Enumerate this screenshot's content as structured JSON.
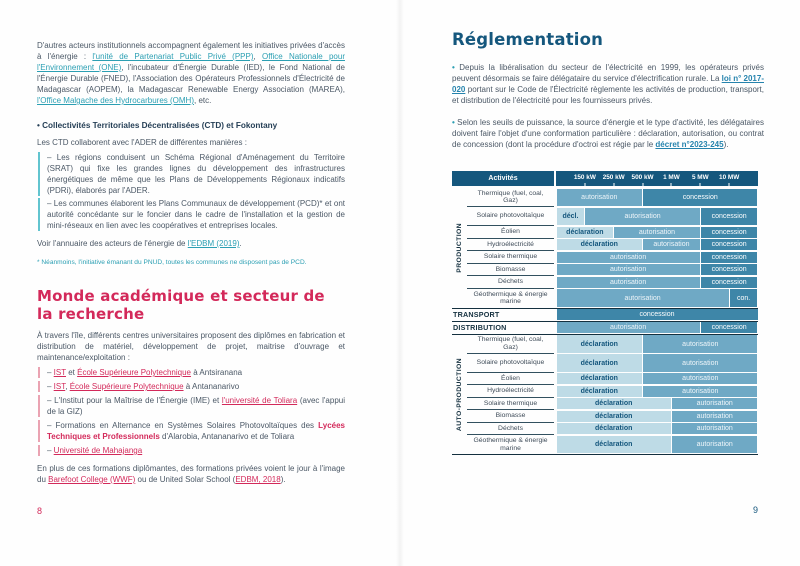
{
  "left_page": {
    "para1_segments": [
      {
        "t": "D'autres acteurs institutionnels accompagnent également les initiatives privées d'accès à l'énergie : ",
        "s": "t"
      },
      {
        "t": "l'unité de Partenariat Public Privé (PPP)",
        "s": "lt"
      },
      {
        "t": ", ",
        "s": "t"
      },
      {
        "t": "Office Nationale pour l'Environnement (ONE)",
        "s": "lt"
      },
      {
        "t": ", l'incubateur d'Énergie Durable (IED), le Fond National de l'Énergie Durable (FNED), l'Association des Opérateurs Professionnels d'Électricité de Madagascar (AOPEM), la Madagascar Renewable Energy Association (MAREA), ",
        "s": "t"
      },
      {
        "t": "l'Office Malgache des Hydrocarbures (OMH)",
        "s": "lt"
      },
      {
        "t": ", etc.",
        "s": "t"
      }
    ],
    "ctd_heading": "• Collectivités Territoriales Décentralisées (CTD) et Fokontany",
    "ctd_intro": "Les CTD collaborent avec l'ADER de différentes manières :",
    "ctd_items": [
      [
        {
          "t": "– Les régions conduisent un  Schéma Régional d'Aménagement du Territoire (SRAT) qui fixe les grandes lignes du développement des infrastructures énergétiques de même que les Plans de Développements Régionaux indicatifs (PDRi), élaborés par l'ADER.",
          "s": "t"
        }
      ],
      [
        {
          "t": "– Les communes élaborent les Plans Communaux de développement (PCD)* et ont autorité concédante sur le foncier dans le cadre de l'installation et la gestion de mini-réseaux en lien avec les coopératives et entreprises locales.",
          "s": "t"
        }
      ]
    ],
    "voir_segments": [
      {
        "t": "Voir l'annuaire des acteurs de l'énergie de ",
        "s": "t"
      },
      {
        "t": "l'EDBM (2019)",
        "s": "lt"
      },
      {
        "t": ".",
        "s": "t"
      }
    ],
    "footnote": "* Néanmoins, l'initiative émanant du PNUD, toutes les communes ne disposent pas de PCD.",
    "academic_heading": "Monde académique et secteur de la recherche",
    "academic_intro": "À travers l'île, différents centres universitaires proposent des diplômes en fabrication et distribution de matériel, développement de projet, maitrise d'ouvrage et maintenance/exploitation :",
    "academic_items": [
      [
        {
          "t": "– ",
          "s": "t"
        },
        {
          "t": "IST",
          "s": "lr"
        },
        {
          "t": " et ",
          "s": "t"
        },
        {
          "t": "École Supérieure Polytechnique",
          "s": "lr"
        },
        {
          "t": " à Antsiranana",
          "s": "t"
        }
      ],
      [
        {
          "t": "– ",
          "s": "t"
        },
        {
          "t": "IST",
          "s": "lr"
        },
        {
          "t": ", ",
          "s": "t"
        },
        {
          "t": "École Supérieure Polytechnique",
          "s": "lr"
        },
        {
          "t": " à Antananarivo",
          "s": "t"
        }
      ],
      [
        {
          "t": "– L'Institut pour la Maîtrise de l'Énergie (IME) et ",
          "s": "t"
        },
        {
          "t": "l'université de Toliara",
          "s": "lr"
        },
        {
          "t": " (avec l'appui de la GIZ)",
          "s": "t"
        }
      ],
      [
        {
          "t": "– Formations en Alternance en Systèmes Solaires Photovoltaïques des ",
          "s": "t"
        },
        {
          "t": "Lycées Techniques et Professionnels",
          "s": "br"
        },
        {
          "t": " d'Alarobia, Antananarivo et de Toliara",
          "s": "t"
        }
      ],
      [
        {
          "t": "– ",
          "s": "t"
        },
        {
          "t": "Université de Mahajanga",
          "s": "lr"
        }
      ]
    ],
    "closing_segments": [
      {
        "t": "En plus de ces formations diplômantes, des formations privées voient le jour à l'image du ",
        "s": "t"
      },
      {
        "t": "Barefoot College (WWF)",
        "s": "lr"
      },
      {
        "t": " ou de United Solar School (",
        "s": "t"
      },
      {
        "t": "EDBM, 2018",
        "s": "lr"
      },
      {
        "t": ").",
        "s": "t"
      }
    ],
    "page_number": "8"
  },
  "right_page": {
    "heading": "Réglementation",
    "para1_segments": [
      {
        "t": "• ",
        "s": "bt"
      },
      {
        "t": "Depuis la libéralisation du secteur de l'électricité en 1999, les opérateurs privés peuvent désormais se faire délégataire du service d'électrification rurale.  La ",
        "s": "t"
      },
      {
        "t": "loi n° 2017- 020",
        "s": "lb"
      },
      {
        "t": " portant sur le Code de l'Électricité règlemente les activités de production, transport, et distribution de l'électricité pour les fournisseurs privés.",
        "s": "t"
      }
    ],
    "para2_segments": [
      {
        "t": "• ",
        "s": "bt"
      },
      {
        "t": "Selon les seuils de puissance, la source d'énergie et le type d'activité, les délégataires doivent faire l'objet d'une conformation particulière : déclaration, autorisation, ou contrat de concession (dont la procédure d'octroi est régie par le ",
        "s": "t"
      },
      {
        "t": "décret n°2023-245",
        "s": "lb"
      },
      {
        "t": ").",
        "s": "t"
      }
    ],
    "page_number": "9"
  },
  "table": {
    "header": {
      "activities_label": "Activités",
      "thresholds": [
        "150 kW",
        "250 kW",
        "500 kW",
        "1 MW",
        "5 MW",
        "10 MW"
      ]
    },
    "zones": 7,
    "sections": [
      {
        "group": "PRODUCTION",
        "rows": [
          {
            "label": "Thermique (fuel, coal, Gaz)",
            "two": true,
            "cells": [
              {
                "text": "autorisation",
                "type": "auto",
                "from": 0,
                "to": 3
              },
              {
                "text": "concession",
                "type": "conc",
                "from": 3,
                "to": 7
              }
            ]
          },
          {
            "label": "Solaire photovoltaïque",
            "two": true,
            "cells": [
              {
                "text": "décl.",
                "type": "decl",
                "from": 0,
                "to": 1
              },
              {
                "text": "autorisation",
                "type": "auto",
                "from": 1,
                "to": 5
              },
              {
                "text": "concession",
                "type": "conc",
                "from": 5,
                "to": 7
              }
            ]
          },
          {
            "label": "Éolien",
            "cells": [
              {
                "text": "déclaration",
                "type": "decl",
                "from": 0,
                "to": 2
              },
              {
                "text": "autorisation",
                "type": "auto",
                "from": 2,
                "to": 5
              },
              {
                "text": "concession",
                "type": "conc",
                "from": 5,
                "to": 7
              }
            ]
          },
          {
            "label": "Hydroélectricité",
            "cells": [
              {
                "text": "déclaration",
                "type": "decl",
                "from": 0,
                "to": 3
              },
              {
                "text": "autorisation",
                "type": "auto",
                "from": 3,
                "to": 5
              },
              {
                "text": "concession",
                "type": "conc",
                "from": 5,
                "to": 7
              }
            ]
          },
          {
            "label": "Solaire thermique",
            "cells": [
              {
                "text": "autorisation",
                "type": "auto",
                "from": 0,
                "to": 5
              },
              {
                "text": "concession",
                "type": "conc",
                "from": 5,
                "to": 7
              }
            ]
          },
          {
            "label": "Biomasse",
            "cells": [
              {
                "text": "autorisation",
                "type": "auto",
                "from": 0,
                "to": 5
              },
              {
                "text": "concession",
                "type": "conc",
                "from": 5,
                "to": 7
              }
            ]
          },
          {
            "label": "Déchets",
            "cells": [
              {
                "text": "autorisation",
                "type": "auto",
                "from": 0,
                "to": 5
              },
              {
                "text": "concession",
                "type": "conc",
                "from": 5,
                "to": 7
              }
            ]
          },
          {
            "label": "Géothermique & énergie marine",
            "two": true,
            "cells": [
              {
                "text": "autorisation",
                "type": "auto",
                "from": 0,
                "to": 6
              },
              {
                "text": "con.",
                "type": "conc",
                "from": 6,
                "to": 7
              }
            ]
          }
        ]
      },
      {
        "band": "TRANSPORT",
        "cells": [
          {
            "text": "concession",
            "type": "conc",
            "from": 0,
            "to": 7
          }
        ]
      },
      {
        "band": "DISTRIBUTION",
        "cells": [
          {
            "text": "autorisation",
            "type": "auto",
            "from": 0,
            "to": 5
          },
          {
            "text": "concession",
            "type": "conc",
            "from": 5,
            "to": 7
          }
        ]
      },
      {
        "group": "AUTO-PRODUCTION",
        "rows": [
          {
            "label": "Thermique (fuel, coal, Gaz)",
            "two": true,
            "cells": [
              {
                "text": "déclaration",
                "type": "decl",
                "from": 0,
                "to": 3
              },
              {
                "text": "autorisation",
                "type": "auto",
                "from": 3,
                "to": 7
              }
            ]
          },
          {
            "label": "Solaire photovoltaïque",
            "two": true,
            "cells": [
              {
                "text": "déclaration",
                "type": "decl",
                "from": 0,
                "to": 3
              },
              {
                "text": "autorisation",
                "type": "auto",
                "from": 3,
                "to": 7
              }
            ]
          },
          {
            "label": "Éolien",
            "cells": [
              {
                "text": "déclaration",
                "type": "decl",
                "from": 0,
                "to": 3
              },
              {
                "text": "autorisation",
                "type": "auto",
                "from": 3,
                "to": 7
              }
            ]
          },
          {
            "label": "Hydroélectricité",
            "cells": [
              {
                "text": "déclaration",
                "type": "decl",
                "from": 0,
                "to": 3
              },
              {
                "text": "autorisation",
                "type": "auto",
                "from": 3,
                "to": 7
              }
            ]
          },
          {
            "label": "Solaire thermique",
            "cells": [
              {
                "text": "déclaration",
                "type": "decl",
                "from": 0,
                "to": 4
              },
              {
                "text": "autorisation",
                "type": "auto",
                "from": 4,
                "to": 7
              }
            ]
          },
          {
            "label": "Biomasse",
            "cells": [
              {
                "text": "déclaration",
                "type": "decl",
                "from": 0,
                "to": 4
              },
              {
                "text": "autorisation",
                "type": "auto",
                "from": 4,
                "to": 7
              }
            ]
          },
          {
            "label": "Déchets",
            "cells": [
              {
                "text": "déclaration",
                "type": "decl",
                "from": 0,
                "to": 4
              },
              {
                "text": "autorisation",
                "type": "auto",
                "from": 4,
                "to": 7
              }
            ]
          },
          {
            "label": "Géothermique & énergie marine",
            "two": true,
            "cells": [
              {
                "text": "déclaration",
                "type": "decl",
                "from": 0,
                "to": 4
              },
              {
                "text": "autorisation",
                "type": "auto",
                "from": 4,
                "to": 7
              }
            ]
          }
        ]
      }
    ]
  },
  "colors": {
    "heading_blue": "#15577d",
    "heading_red": "#d3295a",
    "link_teal": "#2b9fb3",
    "link_blue": "#2583ad",
    "link_red": "#d3295a",
    "body_text": "#4b5866",
    "table_header_bg": "#15577d",
    "cell_declaration_bg": "#bedbe6",
    "cell_autorisation_bg": "#6fa9c5",
    "cell_concession_bg": "#3e86a8",
    "table_line": "#14303f",
    "list_border_teal": "#62c4cf",
    "list_border_red": "#eaa3b2"
  }
}
